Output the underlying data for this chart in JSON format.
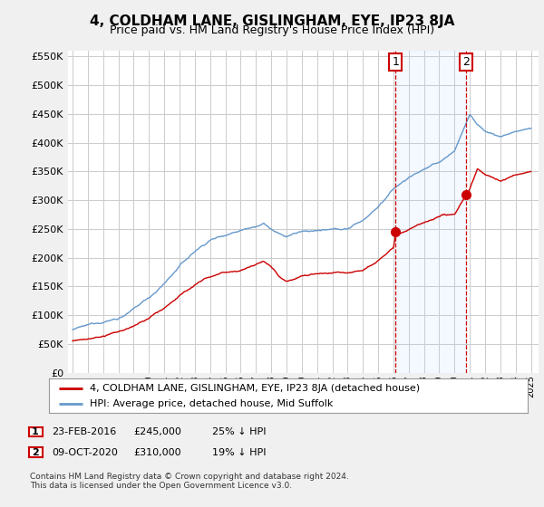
{
  "title": "4, COLDHAM LANE, GISLINGHAM, EYE, IP23 8JA",
  "subtitle": "Price paid vs. HM Land Registry's House Price Index (HPI)",
  "legend_line1": "4, COLDHAM LANE, GISLINGHAM, EYE, IP23 8JA (detached house)",
  "legend_line2": "HPI: Average price, detached house, Mid Suffolk",
  "annotation1": {
    "label": "1",
    "date": "23-FEB-2016",
    "price": "£245,000",
    "pct": "25% ↓ HPI"
  },
  "annotation2": {
    "label": "2",
    "date": "09-OCT-2020",
    "price": "£310,000",
    "pct": "19% ↓ HPI"
  },
  "footnote": "Contains HM Land Registry data © Crown copyright and database right 2024.\nThis data is licensed under the Open Government Licence v3.0.",
  "hpi_color": "#6699cc",
  "price_color": "#cc0000",
  "vline_color": "#cc0000",
  "annotation_box_color": "#cc0000",
  "background_color": "#f0f0f0",
  "plot_bg_color": "#ffffff",
  "grid_color": "#cccccc",
  "ylim": [
    0,
    560000
  ],
  "yticks": [
    0,
    50000,
    100000,
    150000,
    200000,
    250000,
    300000,
    350000,
    400000,
    450000,
    500000,
    550000
  ],
  "sale1_year": 2016.13,
  "sale1_price": 245000,
  "sale2_year": 2020.77,
  "sale2_price": 310000
}
